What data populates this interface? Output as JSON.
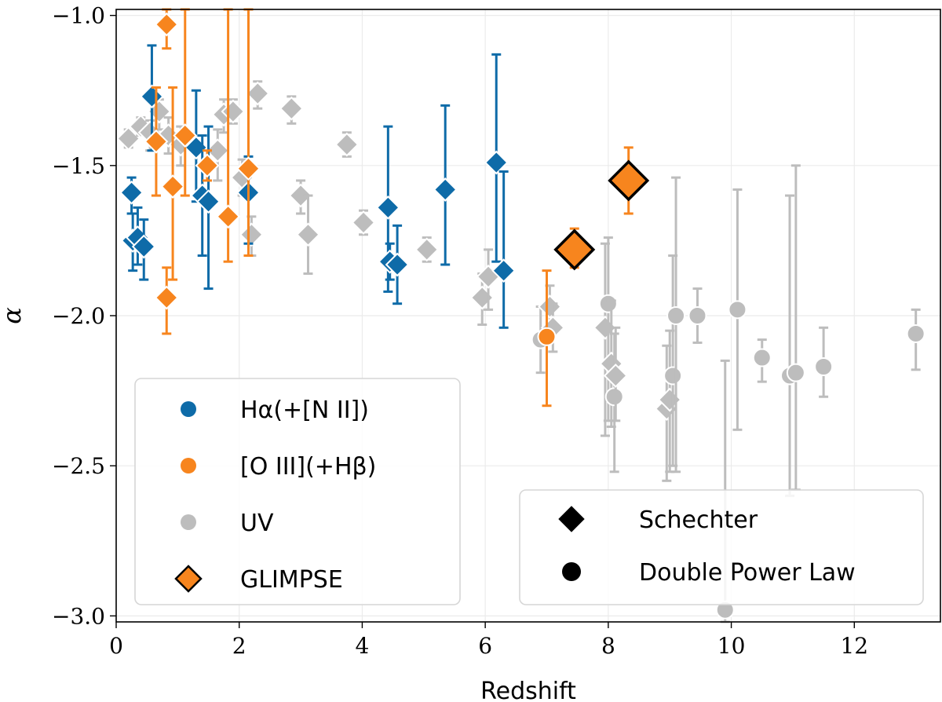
{
  "chart_data": {
    "type": "scatter",
    "title": "",
    "xlabel": "Redshift",
    "ylabel": "α",
    "xlim": [
      0,
      13.4
    ],
    "ylim": [
      -3.02,
      -0.98
    ],
    "xticks": [
      0,
      2,
      4,
      6,
      8,
      10,
      12
    ],
    "yticks": [
      -3.0,
      -2.5,
      -2.0,
      -1.5,
      -1.0
    ],
    "xtick_labels": [
      "0",
      "2",
      "4",
      "6",
      "8",
      "10",
      "12"
    ],
    "ytick_labels": [
      "−3.0",
      "−2.5",
      "−2.0",
      "−1.5",
      "−1.0"
    ],
    "grid": true,
    "colors": {
      "halpha": "#0e6ba8",
      "oiii": "#f7851e",
      "uv": "#bdbdbd",
      "glimpse": "#f7851e",
      "edge_white": "#ffffff",
      "edge_black": "#000000"
    },
    "series": [
      {
        "name": "Hα(+[N II])",
        "key": "halpha",
        "points": [
          {
            "x": 0.25,
            "y": -1.59,
            "ylo": -1.66,
            "yhi": -1.54,
            "marker": "diamond"
          },
          {
            "x": 0.27,
            "y": -1.75,
            "ylo": -1.85,
            "yhi": -1.66,
            "marker": "diamond"
          },
          {
            "x": 0.35,
            "y": -1.74,
            "ylo": -1.83,
            "yhi": -1.64,
            "marker": "diamond"
          },
          {
            "x": 0.45,
            "y": -1.77,
            "ylo": -1.88,
            "yhi": -1.68,
            "marker": "diamond"
          },
          {
            "x": 0.58,
            "y": -1.27,
            "ylo": -1.45,
            "yhi": -1.1,
            "marker": "diamond"
          },
          {
            "x": 1.3,
            "y": -1.44,
            "ylo": -1.62,
            "yhi": -1.25,
            "marker": "diamond"
          },
          {
            "x": 1.4,
            "y": -1.6,
            "ylo": -1.8,
            "yhi": -1.4,
            "marker": "diamond"
          },
          {
            "x": 1.5,
            "y": -1.62,
            "ylo": -1.91,
            "yhi": -1.37,
            "marker": "diamond"
          },
          {
            "x": 2.15,
            "y": -1.59,
            "ylo": -1.76,
            "yhi": -1.47,
            "marker": "diamond"
          },
          {
            "x": 4.42,
            "y": -1.64,
            "ylo": -1.92,
            "yhi": -1.37,
            "marker": "diamond"
          },
          {
            "x": 4.45,
            "y": -1.82,
            "ylo": -1.88,
            "yhi": -1.76,
            "marker": "diamond"
          },
          {
            "x": 4.57,
            "y": -1.83,
            "ylo": -1.96,
            "yhi": -1.7,
            "marker": "diamond"
          },
          {
            "x": 5.35,
            "y": -1.58,
            "ylo": -1.83,
            "yhi": -1.3,
            "marker": "diamond"
          },
          {
            "x": 6.18,
            "y": -1.49,
            "ylo": -1.82,
            "yhi": -1.13,
            "marker": "diamond"
          },
          {
            "x": 6.3,
            "y": -1.85,
            "ylo": -2.04,
            "yhi": -1.52,
            "marker": "diamond"
          }
        ]
      },
      {
        "name": "[O III](+Hβ)",
        "key": "oiii",
        "points": [
          {
            "x": 0.65,
            "y": -1.42,
            "ylo": -1.6,
            "yhi": -1.24,
            "marker": "diamond"
          },
          {
            "x": 0.82,
            "y": -1.03,
            "ylo": -1.11,
            "yhi": -0.98,
            "marker": "diamond"
          },
          {
            "x": 0.82,
            "y": -1.94,
            "ylo": -2.06,
            "yhi": -1.84,
            "marker": "diamond"
          },
          {
            "x": 0.92,
            "y": -1.57,
            "ylo": -1.88,
            "yhi": -1.24,
            "marker": "diamond"
          },
          {
            "x": 1.12,
            "y": -1.4,
            "ylo": -1.6,
            "yhi": -0.98,
            "marker": "diamond"
          },
          {
            "x": 1.48,
            "y": -1.5,
            "ylo": -1.55,
            "yhi": -1.45,
            "marker": "diamond"
          },
          {
            "x": 1.82,
            "y": -1.67,
            "ylo": -1.82,
            "yhi": -0.98,
            "marker": "diamond"
          },
          {
            "x": 2.15,
            "y": -1.51,
            "ylo": -1.8,
            "yhi": -0.98,
            "marker": "diamond"
          },
          {
            "x": 7.0,
            "y": -2.07,
            "ylo": -2.3,
            "yhi": -1.85,
            "marker": "circle"
          }
        ]
      },
      {
        "name": "UV",
        "key": "uv",
        "points": [
          {
            "x": 0.2,
            "y": -1.41,
            "ylo": -1.44,
            "yhi": -1.38,
            "marker": "diamond"
          },
          {
            "x": 0.4,
            "y": -1.37,
            "ylo": -1.4,
            "yhi": -1.34,
            "marker": "diamond"
          },
          {
            "x": 0.55,
            "y": -1.39,
            "ylo": -1.45,
            "yhi": -1.35,
            "marker": "diamond"
          },
          {
            "x": 0.7,
            "y": -1.32,
            "ylo": -1.38,
            "yhi": -1.28,
            "marker": "diamond"
          },
          {
            "x": 0.85,
            "y": -1.4,
            "ylo": -1.46,
            "yhi": -1.34,
            "marker": "diamond"
          },
          {
            "x": 1.05,
            "y": -1.43,
            "ylo": -1.5,
            "yhi": -1.37,
            "marker": "diamond"
          },
          {
            "x": 1.65,
            "y": -1.45,
            "ylo": -1.55,
            "yhi": -1.38,
            "marker": "diamond"
          },
          {
            "x": 1.75,
            "y": -1.33,
            "ylo": -1.39,
            "yhi": -1.28,
            "marker": "diamond"
          },
          {
            "x": 1.9,
            "y": -1.32,
            "ylo": -1.36,
            "yhi": -1.28,
            "marker": "diamond"
          },
          {
            "x": 2.05,
            "y": -1.54,
            "ylo": -1.6,
            "yhi": -1.48,
            "marker": "diamond"
          },
          {
            "x": 2.2,
            "y": -1.73,
            "ylo": -1.8,
            "yhi": -1.67,
            "marker": "diamond"
          },
          {
            "x": 2.3,
            "y": -1.26,
            "ylo": -1.31,
            "yhi": -1.22,
            "marker": "diamond"
          },
          {
            "x": 2.85,
            "y": -1.31,
            "ylo": -1.36,
            "yhi": -1.27,
            "marker": "diamond"
          },
          {
            "x": 3.0,
            "y": -1.6,
            "ylo": -1.66,
            "yhi": -1.55,
            "marker": "diamond"
          },
          {
            "x": 3.12,
            "y": -1.73,
            "ylo": -1.86,
            "yhi": -1.6,
            "marker": "diamond"
          },
          {
            "x": 3.75,
            "y": -1.43,
            "ylo": -1.47,
            "yhi": -1.39,
            "marker": "diamond"
          },
          {
            "x": 4.02,
            "y": -1.69,
            "ylo": -1.73,
            "yhi": -1.65,
            "marker": "diamond"
          },
          {
            "x": 5.05,
            "y": -1.78,
            "ylo": -1.82,
            "yhi": -1.74,
            "marker": "diamond"
          },
          {
            "x": 5.95,
            "y": -1.94,
            "ylo": -2.03,
            "yhi": -1.86,
            "marker": "diamond"
          },
          {
            "x": 6.05,
            "y": -1.87,
            "ylo": -1.98,
            "yhi": -1.78,
            "marker": "diamond"
          },
          {
            "x": 6.9,
            "y": -2.08,
            "ylo": -2.19,
            "yhi": -1.97,
            "marker": "circle"
          },
          {
            "x": 7.05,
            "y": -1.97,
            "ylo": -2.05,
            "yhi": -1.9,
            "marker": "diamond"
          },
          {
            "x": 7.1,
            "y": -2.04,
            "ylo": -2.12,
            "yhi": -1.96,
            "marker": "diamond"
          },
          {
            "x": 7.95,
            "y": -2.04,
            "ylo": -2.4,
            "yhi": -1.76,
            "marker": "diamond"
          },
          {
            "x": 8.0,
            "y": -1.96,
            "ylo": -2.35,
            "yhi": -1.74,
            "marker": "circle"
          },
          {
            "x": 8.05,
            "y": -2.16,
            "ylo": -2.37,
            "yhi": -1.95,
            "marker": "diamond"
          },
          {
            "x": 8.1,
            "y": -2.27,
            "ylo": -2.52,
            "yhi": -2.06,
            "marker": "circle"
          },
          {
            "x": 8.12,
            "y": -2.2,
            "ylo": -2.35,
            "yhi": -2.04,
            "marker": "diamond"
          },
          {
            "x": 8.95,
            "y": -2.31,
            "ylo": -2.55,
            "yhi": -2.1,
            "marker": "diamond"
          },
          {
            "x": 9.0,
            "y": -2.28,
            "ylo": -2.52,
            "yhi": -2.05,
            "marker": "diamond"
          },
          {
            "x": 9.05,
            "y": -2.2,
            "ylo": -2.5,
            "yhi": -1.8,
            "marker": "circle"
          },
          {
            "x": 9.1,
            "y": -2.0,
            "ylo": -2.52,
            "yhi": -1.54,
            "marker": "circle"
          },
          {
            "x": 9.45,
            "y": -2.0,
            "ylo": -2.09,
            "yhi": -1.91,
            "marker": "circle"
          },
          {
            "x": 9.9,
            "y": -2.98,
            "ylo": -3.02,
            "yhi": -2.15,
            "marker": "circle"
          },
          {
            "x": 10.1,
            "y": -1.98,
            "ylo": -2.38,
            "yhi": -1.58,
            "marker": "circle"
          },
          {
            "x": 10.5,
            "y": -2.14,
            "ylo": -2.22,
            "yhi": -2.08,
            "marker": "circle"
          },
          {
            "x": 10.95,
            "y": -2.2,
            "ylo": -2.6,
            "yhi": -1.6,
            "marker": "circle"
          },
          {
            "x": 11.05,
            "y": -2.19,
            "ylo": -2.58,
            "yhi": -1.5,
            "marker": "circle"
          },
          {
            "x": 11.5,
            "y": -2.17,
            "ylo": -2.27,
            "yhi": -2.04,
            "marker": "circle"
          },
          {
            "x": 13.0,
            "y": -2.06,
            "ylo": -2.18,
            "yhi": -1.98,
            "marker": "circle"
          }
        ]
      },
      {
        "name": "GLIMPSE",
        "key": "glimpse",
        "points": [
          {
            "x": 7.45,
            "y": -1.78,
            "ylo": -1.84,
            "yhi": -1.71,
            "marker": "diamond"
          },
          {
            "x": 8.33,
            "y": -1.55,
            "ylo": -1.66,
            "yhi": -1.44,
            "marker": "diamond"
          }
        ]
      }
    ],
    "legend_color": {
      "placement": "lower-left",
      "entries": [
        {
          "label": "Hα(+[N II])",
          "key": "halpha",
          "marker": "circle"
        },
        {
          "label": "[O III](+Hβ)",
          "key": "oiii",
          "marker": "circle"
        },
        {
          "label": "UV",
          "key": "uv",
          "marker": "circle"
        },
        {
          "label": "GLIMPSE",
          "key": "glimpse",
          "marker": "diamond"
        }
      ]
    },
    "legend_marker": {
      "placement": "lower-right",
      "entries": [
        {
          "label": "Schechter",
          "marker": "diamond"
        },
        {
          "label": "Double Power Law",
          "marker": "circle"
        }
      ]
    }
  }
}
